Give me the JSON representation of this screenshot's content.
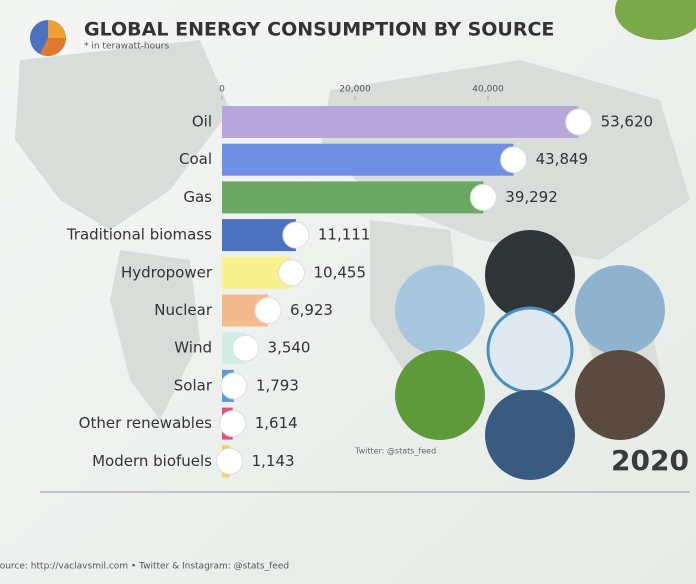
{
  "chart_data": {
    "type": "bar",
    "orientation": "horizontal",
    "title": "GLOBAL ENERGY CONSUMPTION BY SOURCE",
    "subtitle": "* in terawatt-hours",
    "categories": [
      "Oil",
      "Coal",
      "Gas",
      "Traditional biomass",
      "Hydropower",
      "Nuclear",
      "Wind",
      "Solar",
      "Other renewables",
      "Modern biofuels"
    ],
    "values": [
      53620,
      43849,
      39292,
      11111,
      10455,
      6923,
      3540,
      1793,
      1614,
      1143
    ],
    "value_labels": [
      "53,620",
      "43,849",
      "39,292",
      "11,111",
      "10,455",
      "6,923",
      "3,540",
      "1,793",
      "1,614",
      "1,143"
    ],
    "colors": [
      "#b7a6d9",
      "#6f8fe2",
      "#6aa864",
      "#4a72c0",
      "#f7f28c",
      "#f5ba8c",
      "#cfeee6",
      "#5b9bd5",
      "#e0507e",
      "#f0d35a"
    ],
    "xlim": [
      0,
      60000
    ],
    "xticks": [
      0,
      {
        "value": 20000,
        "label": "20,000"
      },
      {
        "value": 40000,
        "label": "40,000"
      }
    ],
    "year": "2020",
    "credit": "Twitter: @stats_feed",
    "source": "Source: http://vaclavsmil.com • Twitter & Instagram: @stats_feed"
  }
}
